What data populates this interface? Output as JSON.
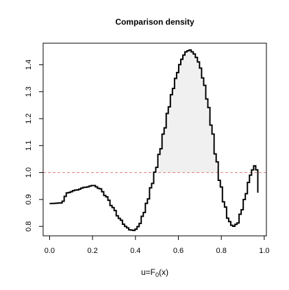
{
  "chart_data": {
    "type": "line",
    "title": "Comparison density",
    "xlabel_main": "u=F",
    "xlabel_sub": "0",
    "xlabel_tail": "(x)",
    "ylabel": "",
    "xlim": [
      -0.03,
      1.01
    ],
    "ylim": [
      0.765,
      1.48
    ],
    "x_ticks": [
      0.0,
      0.2,
      0.4,
      0.6,
      0.8,
      1.0
    ],
    "x_tick_labels": [
      "0.0",
      "0.2",
      "0.4",
      "0.6",
      "0.8",
      "1.0"
    ],
    "y_ticks": [
      0.8,
      0.9,
      1.0,
      1.1,
      1.2,
      1.3,
      1.4
    ],
    "y_tick_labels": [
      "0.8",
      "0.9",
      "1.0",
      "1.1",
      "1.2",
      "1.3",
      "1.4"
    ],
    "reference_line": {
      "y": 1.0,
      "style": "dashed",
      "color": "#e07b7b"
    },
    "shaded_region": {
      "x_from": 0.51,
      "x_to": 0.785,
      "fill": "#f0f0f0",
      "description": "area above reference line"
    },
    "line_color": "#000000",
    "grid": false,
    "series": [
      {
        "x": [
          0.0,
          0.05,
          0.08,
          0.12,
          0.16,
          0.2,
          0.23,
          0.26,
          0.29,
          0.32,
          0.35,
          0.37,
          0.39,
          0.41,
          0.43,
          0.45,
          0.47,
          0.49,
          0.51,
          0.53,
          0.55,
          0.57,
          0.59,
          0.61,
          0.63,
          0.65,
          0.67,
          0.69,
          0.71,
          0.73,
          0.75,
          0.77,
          0.79,
          0.81,
          0.83,
          0.85,
          0.87,
          0.89,
          0.91,
          0.93,
          0.95,
          0.96,
          0.97
        ],
        "y": [
          0.885,
          0.887,
          0.925,
          0.935,
          0.945,
          0.952,
          0.94,
          0.91,
          0.87,
          0.83,
          0.8,
          0.787,
          0.785,
          0.8,
          0.84,
          0.89,
          0.95,
          1.01,
          1.08,
          1.16,
          1.24,
          1.31,
          1.37,
          1.42,
          1.448,
          1.455,
          1.44,
          1.41,
          1.35,
          1.27,
          1.17,
          1.06,
          0.96,
          0.88,
          0.82,
          0.8,
          0.81,
          0.86,
          0.92,
          0.99,
          1.025,
          1.01,
          0.925
        ]
      }
    ]
  }
}
